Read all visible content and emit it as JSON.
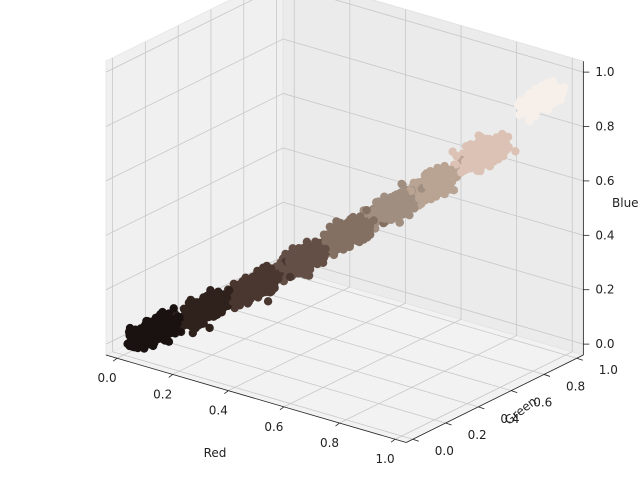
{
  "chart_data": {
    "type": "scatter",
    "projection": "3d",
    "title": "",
    "xlabel": "Red",
    "ylabel": "Green",
    "zlabel": "Blue",
    "xlim": [
      0,
      1
    ],
    "ylim": [
      0,
      1
    ],
    "zlim": [
      0,
      1
    ],
    "x_ticks": [
      "0.0",
      "0.2",
      "0.4",
      "0.6",
      "0.8",
      "1.0"
    ],
    "y_ticks": [
      "0.0",
      "0.2",
      "0.4",
      "0.6",
      "0.8",
      "1.0"
    ],
    "z_ticks": [
      "0.0",
      "0.2",
      "0.4",
      "0.6",
      "0.8",
      "1.0"
    ],
    "grid": true,
    "clusters": [
      {
        "color": "#1a1210",
        "center": [
          0.07,
          0.06,
          0.05
        ],
        "spread": 0.07
      },
      {
        "color": "#2f221d",
        "center": [
          0.2,
          0.16,
          0.14
        ],
        "spread": 0.07
      },
      {
        "color": "#4a3730",
        "center": [
          0.32,
          0.26,
          0.23
        ],
        "spread": 0.07
      },
      {
        "color": "#644f46",
        "center": [
          0.43,
          0.36,
          0.33
        ],
        "spread": 0.07
      },
      {
        "color": "#847062",
        "center": [
          0.54,
          0.46,
          0.43
        ],
        "spread": 0.07
      },
      {
        "color": "#a08e81",
        "center": [
          0.64,
          0.57,
          0.53
        ],
        "spread": 0.07
      },
      {
        "color": "#b9a392",
        "center": [
          0.73,
          0.66,
          0.61
        ],
        "spread": 0.07
      },
      {
        "color": "#dcc2b4",
        "center": [
          0.84,
          0.77,
          0.72
        ],
        "spread": 0.07
      },
      {
        "color": "#f6efea",
        "center": [
          0.96,
          0.93,
          0.91
        ],
        "spread": 0.06
      }
    ]
  }
}
